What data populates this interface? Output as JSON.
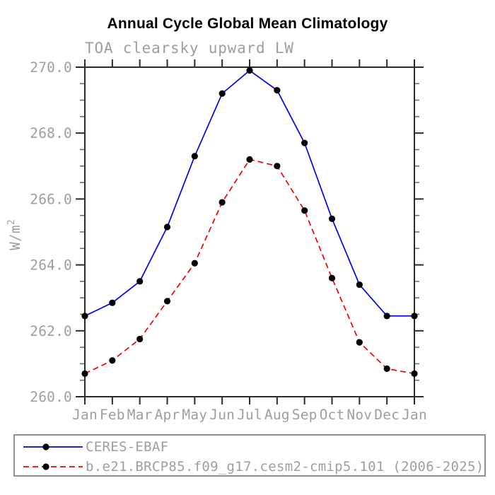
{
  "header": {
    "title": "Annual Cycle Global Mean Climatology",
    "subtitle": "TOA clearsky upward LW"
  },
  "chart_data": {
    "type": "line",
    "title": "Annual Cycle Global Mean Climatology",
    "subtitle": "TOA clearsky upward LW",
    "xlabel": "",
    "ylabel": "W/m",
    "ylabel_superscript": "2",
    "categories": [
      "Jan",
      "Feb",
      "Mar",
      "Apr",
      "May",
      "Jun",
      "Jul",
      "Aug",
      "Sep",
      "Oct",
      "Nov",
      "Dec",
      "Jan"
    ],
    "series": [
      {
        "name": "CERES-EBAF",
        "color": "#0000ee",
        "line_style": "solid",
        "marker": "filled-circle",
        "marker_color": "#000000",
        "values": [
          262.45,
          262.85,
          263.5,
          265.15,
          267.3,
          269.2,
          269.9,
          269.3,
          267.7,
          265.4,
          263.4,
          262.45,
          262.45
        ]
      },
      {
        "name": "b.e21.BRCP85.f09_g17.cesm2-cmip5.101 (2006-2025)",
        "color": "#f00000",
        "line_style": "dashed",
        "marker": "filled-circle",
        "marker_color": "#000000",
        "values": [
          260.7,
          261.1,
          261.75,
          262.9,
          264.05,
          265.9,
          267.2,
          267.0,
          265.65,
          263.6,
          261.65,
          260.85,
          260.7
        ]
      }
    ],
    "ylim": [
      260.0,
      270.0
    ],
    "ytick_interval": 2.0,
    "yminor_interval": 0.5,
    "ytick_labels": [
      "260.0",
      "262.0",
      "264.0",
      "266.0",
      "268.0",
      "270.0"
    ],
    "grid": false,
    "legend_position": "bottom-left"
  },
  "colors": {
    "axis": "#2b2b2b",
    "minor_tick": "#6e6e6e",
    "label_gray": "#9e9e9e",
    "legend_border": "#8f8f8f"
  }
}
